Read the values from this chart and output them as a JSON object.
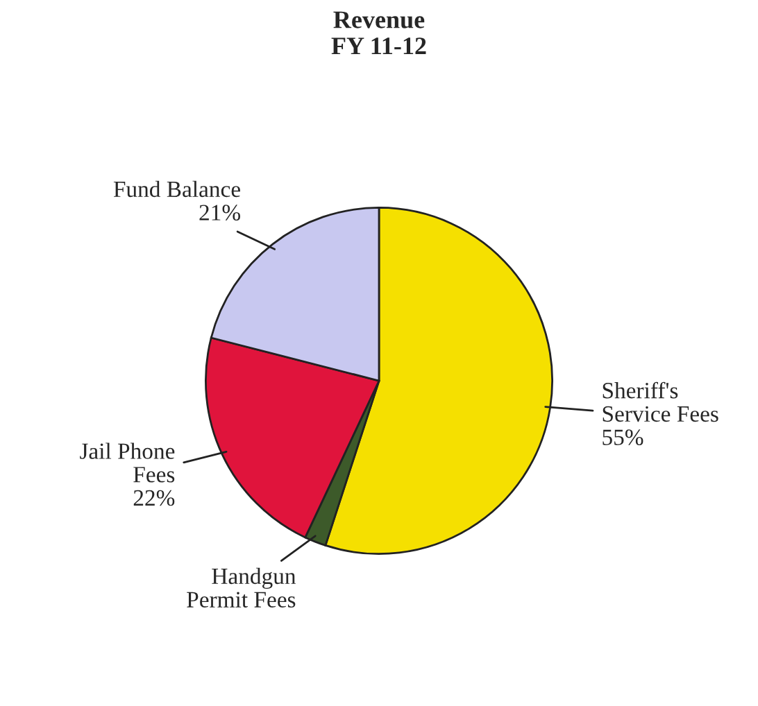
{
  "chart_data": {
    "type": "pie",
    "title": "Revenue\nFY 11-12",
    "categories": [
      "Sheriff's\nService Fees",
      "Handgun\nPermit Fees",
      "Jail Phone\nFees",
      "Fund Balance"
    ],
    "values": [
      55,
      2,
      22,
      21
    ],
    "value_labels": [
      "55%",
      null,
      "22%",
      "21%"
    ],
    "colors": [
      "#f5e000",
      "#3d5a2a",
      "#e0143c",
      "#c8c8f0"
    ]
  }
}
